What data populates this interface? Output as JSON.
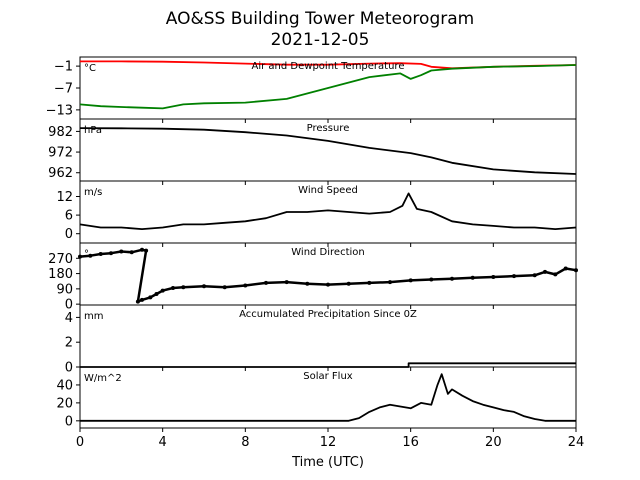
{
  "title": "AO&SS Building Tower Meteorogram",
  "subtitle": "2021-12-05",
  "xlabel": "Time (UTC)",
  "xticks": [
    "0",
    "4",
    "8",
    "12",
    "16",
    "20",
    "24"
  ],
  "colors": {
    "temperature": "#ff0000",
    "dewpoint": "#008000",
    "line": "#000000"
  },
  "chart_data": [
    {
      "type": "line",
      "title": "Air and Dewpoint Temperature",
      "unit": "°C",
      "x_range": [
        0,
        24
      ],
      "ylim": [
        -15.5,
        1.5
      ],
      "yticks": [
        "−1",
        "−7",
        "−13"
      ],
      "ytick_values": [
        -1,
        -7,
        -13
      ],
      "series": [
        {
          "key": "temperature",
          "x": [
            0,
            2,
            4,
            6,
            8,
            10,
            12,
            14,
            15.5,
            16.5,
            17,
            18,
            20,
            22,
            24
          ],
          "values": [
            0.3,
            0.3,
            0.2,
            0.0,
            -0.3,
            -0.6,
            -0.6,
            -0.3,
            -0.2,
            -0.4,
            -1.2,
            -1.6,
            -1.2,
            -0.9,
            -0.7
          ]
        },
        {
          "key": "dewpoint",
          "x": [
            0,
            1,
            2,
            3,
            4,
            5,
            6,
            8,
            10,
            12,
            14,
            15.5,
            16,
            16.5,
            17,
            18,
            20,
            22,
            24
          ],
          "values": [
            -11.5,
            -12.0,
            -12.2,
            -12.4,
            -12.6,
            -11.5,
            -11.2,
            -11.0,
            -10.0,
            -7.0,
            -4.0,
            -3.0,
            -4.5,
            -3.5,
            -2.2,
            -1.7,
            -1.2,
            -1.0,
            -0.7
          ]
        }
      ]
    },
    {
      "type": "line",
      "title": "Pressure",
      "unit": "hPa",
      "x_range": [
        0,
        24
      ],
      "ylim": [
        958,
        988
      ],
      "yticks": [
        "982",
        "972",
        "962"
      ],
      "ytick_values": [
        982,
        972,
        962
      ],
      "series": [
        {
          "key": "line",
          "x": [
            0,
            2,
            4,
            6,
            8,
            10,
            12,
            14,
            16,
            17,
            18,
            20,
            22,
            24
          ],
          "values": [
            983.6,
            983.5,
            983.3,
            982.8,
            981.6,
            980.0,
            977.4,
            974.0,
            971.5,
            969.4,
            966.8,
            963.6,
            962.2,
            961.4
          ]
        }
      ]
    },
    {
      "type": "line",
      "title": "Wind Speed",
      "unit": "m/s",
      "x_range": [
        0,
        24
      ],
      "ylim": [
        -3,
        17
      ],
      "yticks": [
        "12",
        "6",
        "0"
      ],
      "ytick_values": [
        12,
        6,
        0
      ],
      "series": [
        {
          "key": "line",
          "x": [
            0,
            1,
            2,
            3,
            4,
            5,
            6,
            7,
            8,
            9,
            10,
            11,
            12,
            13,
            14,
            15,
            15.6,
            15.9,
            16.3,
            17,
            18,
            19,
            20,
            21,
            22,
            23,
            24
          ],
          "values": [
            3,
            2,
            2,
            1.5,
            2,
            3,
            3,
            3.5,
            4,
            5,
            7,
            7,
            7.5,
            7,
            6.5,
            7,
            9,
            13,
            8,
            7,
            4,
            3,
            2.5,
            2,
            2,
            1.5,
            2
          ]
        }
      ]
    },
    {
      "type": "scatter",
      "title": "Wind Direction",
      "unit": "°",
      "x_range": [
        0,
        24
      ],
      "ylim": [
        -5,
        360
      ],
      "yticks": [
        "270",
        "180",
        "90",
        "0"
      ],
      "ytick_values": [
        270,
        180,
        90,
        0
      ],
      "series": [
        {
          "key": "line",
          "x": [
            0,
            0.5,
            1,
            1.5,
            2,
            2.5,
            3,
            3.2,
            2.8,
            3.0,
            3.4,
            3.7,
            4,
            4.5,
            5,
            6,
            7,
            8,
            9,
            10,
            11,
            12,
            13,
            14,
            15,
            16,
            17,
            18,
            19,
            20,
            21,
            22,
            22.5,
            23,
            23.5,
            24
          ],
          "values": [
            280,
            285,
            295,
            300,
            310,
            305,
            320,
            315,
            15,
            25,
            40,
            60,
            80,
            95,
            100,
            105,
            100,
            110,
            125,
            130,
            120,
            115,
            120,
            125,
            130,
            140,
            145,
            150,
            155,
            160,
            165,
            170,
            190,
            175,
            210,
            200
          ]
        }
      ]
    },
    {
      "type": "line",
      "title": "Accumulated Precipitation Since 0Z",
      "unit": "mm",
      "x_range": [
        0,
        24
      ],
      "ylim": [
        0,
        5
      ],
      "yticks": [
        "4",
        "2",
        "0"
      ],
      "ytick_values": [
        4,
        2,
        0
      ],
      "series": [
        {
          "key": "line",
          "x": [
            0,
            15.9,
            15.9,
            24
          ],
          "values": [
            0,
            0,
            0.3,
            0.3
          ]
        }
      ]
    },
    {
      "type": "line",
      "title": "Solar Flux",
      "unit": "W/m^2",
      "x_range": [
        0,
        24
      ],
      "ylim": [
        -8,
        60
      ],
      "yticks": [
        "40",
        "20",
        "0"
      ],
      "ytick_values": [
        40,
        20,
        0
      ],
      "series": [
        {
          "key": "line",
          "x": [
            0,
            13,
            13.5,
            14,
            14.5,
            15,
            15.5,
            16,
            16.5,
            17,
            17.3,
            17.5,
            17.8,
            18,
            18.5,
            19,
            19.5,
            20,
            20.5,
            21,
            21.5,
            22,
            22.5,
            24
          ],
          "values": [
            0,
            0,
            3,
            10,
            15,
            18,
            16,
            14,
            20,
            18,
            40,
            52,
            30,
            35,
            28,
            22,
            18,
            15,
            12,
            10,
            5,
            2,
            0,
            0
          ]
        }
      ]
    }
  ]
}
